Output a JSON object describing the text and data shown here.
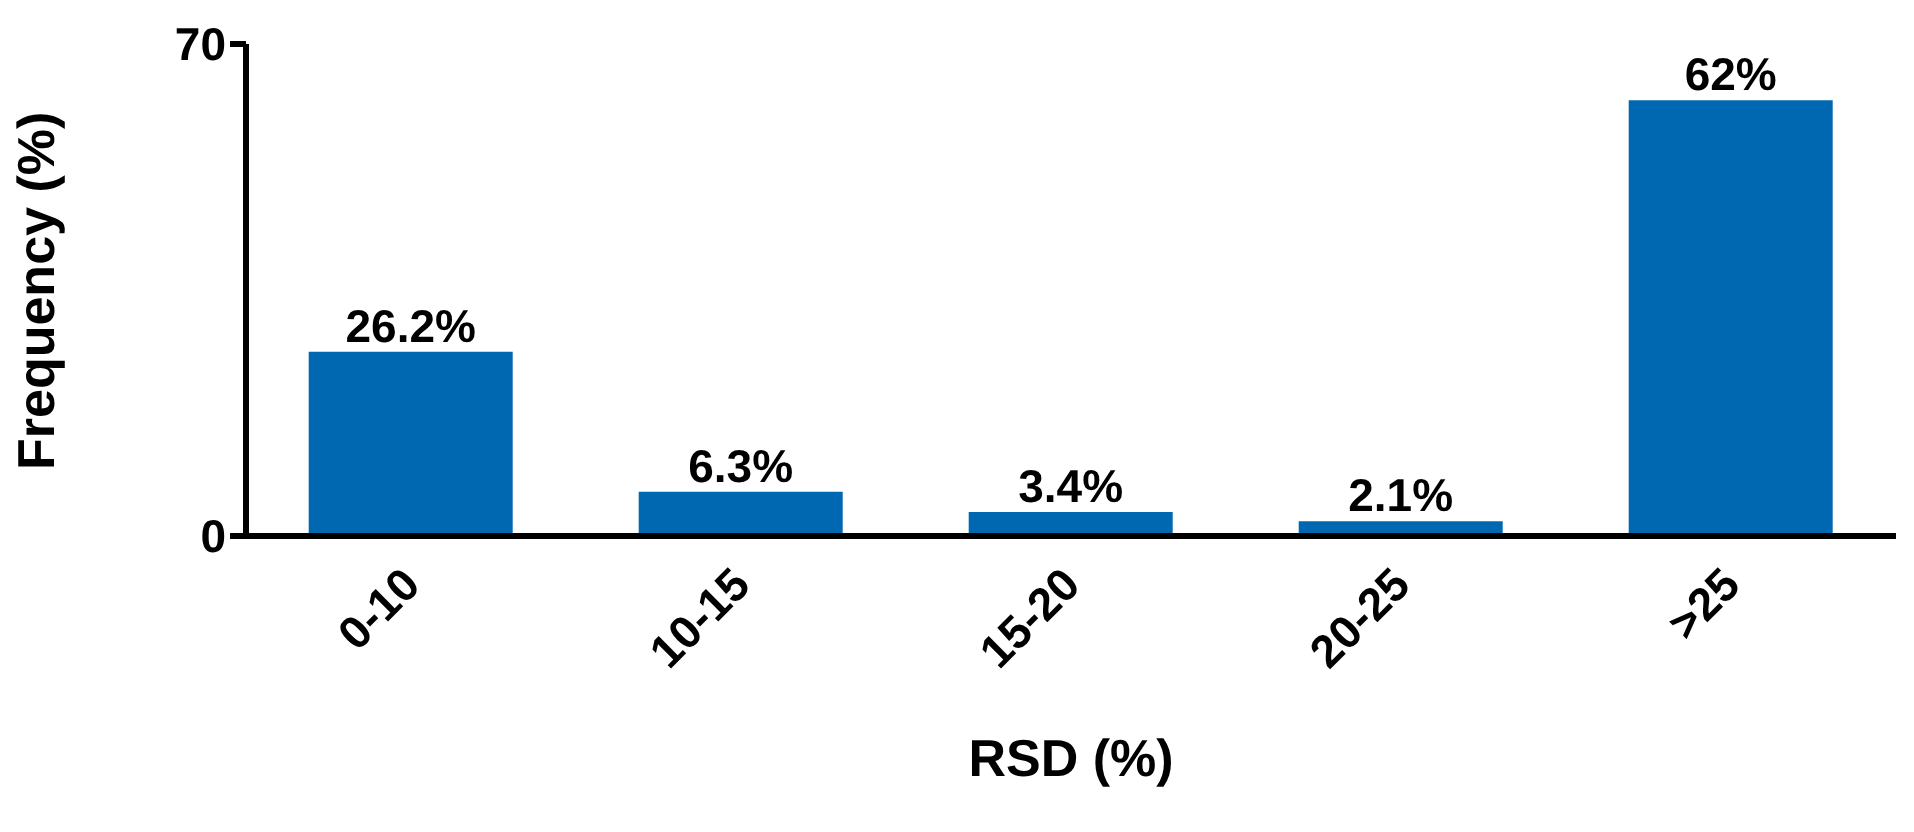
{
  "chart_data": {
    "type": "bar",
    "xlabel": "RSD (%)",
    "ylabel": "Frequency (%)",
    "categories": [
      "0-10",
      "10-15",
      "15-20",
      "20-25",
      ">25"
    ],
    "values": [
      26.2,
      6.3,
      3.4,
      2.1,
      62
    ],
    "value_labels": [
      "26.2%",
      "6.3%",
      "3.4%",
      "2.1%",
      "62%"
    ],
    "color": "#0068b0",
    "ylim": [
      0,
      70
    ],
    "yticks": [
      0,
      70
    ],
    "grid": false,
    "legend": false
  }
}
